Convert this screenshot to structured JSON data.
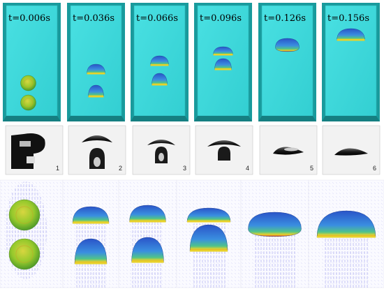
{
  "figure": {
    "sim_panels": [
      {
        "time_label": "t=0.006s",
        "config": "spheres-touching"
      },
      {
        "time_label": "t=0.036s",
        "config": "caps-separated"
      },
      {
        "time_label": "t=0.066s",
        "config": "caps-separated"
      },
      {
        "time_label": "t=0.096s",
        "config": "caps-close"
      },
      {
        "time_label": "t=0.126s",
        "config": "merged-single"
      },
      {
        "time_label": "t=0.156s",
        "config": "merged-cap"
      }
    ],
    "photo_panels": [
      {
        "number": "1"
      },
      {
        "number": "2"
      },
      {
        "number": "3"
      },
      {
        "number": "4"
      },
      {
        "number": "5"
      },
      {
        "number": "6"
      }
    ],
    "colors": {
      "tank_fill": "#3ed6d8",
      "tank_frame": "#199a9c",
      "bubble_body": "#2f6fe0",
      "bubble_rim": "#e8d22a",
      "bubble_sphere": "#9ccf2c",
      "vector_field": "#3b3bd6"
    }
  }
}
